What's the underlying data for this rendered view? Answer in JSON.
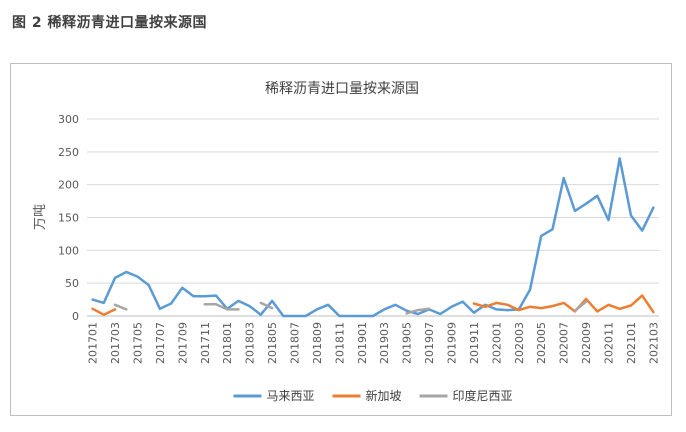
{
  "figure_caption": "图 2 稀释沥青进口量按来源国",
  "chart_data": {
    "type": "line",
    "title": "稀释沥青进口量按来源国",
    "ylabel": "万吨",
    "xlabel": "",
    "ylim": [
      0,
      300
    ],
    "yticks": [
      0,
      50,
      100,
      150,
      200,
      250,
      300
    ],
    "grid": true,
    "legend_position": "bottom",
    "categories": [
      "201701",
      "201702",
      "201703",
      "201704",
      "201705",
      "201706",
      "201707",
      "201708",
      "201709",
      "201710",
      "201711",
      "201712",
      "201801",
      "201802",
      "201803",
      "201804",
      "201805",
      "201806",
      "201807",
      "201808",
      "201809",
      "201810",
      "201811",
      "201812",
      "201901",
      "201902",
      "201903",
      "201904",
      "201905",
      "201906",
      "201907",
      "201908",
      "201909",
      "201910",
      "201911",
      "201912",
      "202001",
      "202002",
      "202003",
      "202004",
      "202005",
      "202006",
      "202007",
      "202008",
      "202009",
      "202010",
      "202011",
      "202012",
      "202101",
      "202102",
      "202103"
    ],
    "series": [
      {
        "name": "马来西亚",
        "color": "#5b9bd5",
        "values": [
          25,
          20,
          58,
          67,
          60,
          47,
          11,
          19,
          43,
          30,
          30,
          31,
          11,
          23,
          15,
          2,
          23,
          0,
          0,
          0,
          10,
          17,
          0,
          0,
          0,
          0,
          10,
          17,
          8,
          3,
          10,
          3,
          14,
          22,
          5,
          17,
          10,
          9,
          10,
          40,
          122,
          132,
          210,
          160,
          171,
          183,
          146,
          240,
          153,
          130,
          165
        ]
      },
      {
        "name": "新加坡",
        "color": "#ed7d31",
        "values": [
          11,
          2,
          10,
          null,
          null,
          null,
          null,
          null,
          null,
          null,
          null,
          null,
          null,
          null,
          null,
          null,
          null,
          null,
          null,
          null,
          null,
          null,
          null,
          null,
          null,
          null,
          null,
          null,
          null,
          null,
          null,
          null,
          null,
          null,
          19,
          14,
          20,
          17,
          9,
          14,
          12,
          15,
          20,
          7,
          26,
          7,
          17,
          11,
          16,
          31,
          6
        ]
      },
      {
        "name": "印度尼西亚",
        "color": "#a5a5a5",
        "values": [
          null,
          null,
          17,
          10,
          null,
          null,
          null,
          null,
          null,
          null,
          18,
          18,
          10,
          10,
          null,
          20,
          12,
          null,
          null,
          null,
          null,
          null,
          null,
          null,
          null,
          null,
          null,
          null,
          4,
          9,
          11,
          null,
          null,
          null,
          null,
          null,
          null,
          null,
          null,
          null,
          null,
          null,
          null,
          8,
          22,
          null,
          null,
          null,
          null,
          null,
          null
        ]
      }
    ],
    "xtick_labels": [
      "201701",
      "201703",
      "201705",
      "201707",
      "201709",
      "201711",
      "201801",
      "201803",
      "201805",
      "201807",
      "201809",
      "201811",
      "201901",
      "201903",
      "201905",
      "201907",
      "201909",
      "201911",
      "202001",
      "202003",
      "202005",
      "202007",
      "202009",
      "202011",
      "202101",
      "202103"
    ]
  }
}
